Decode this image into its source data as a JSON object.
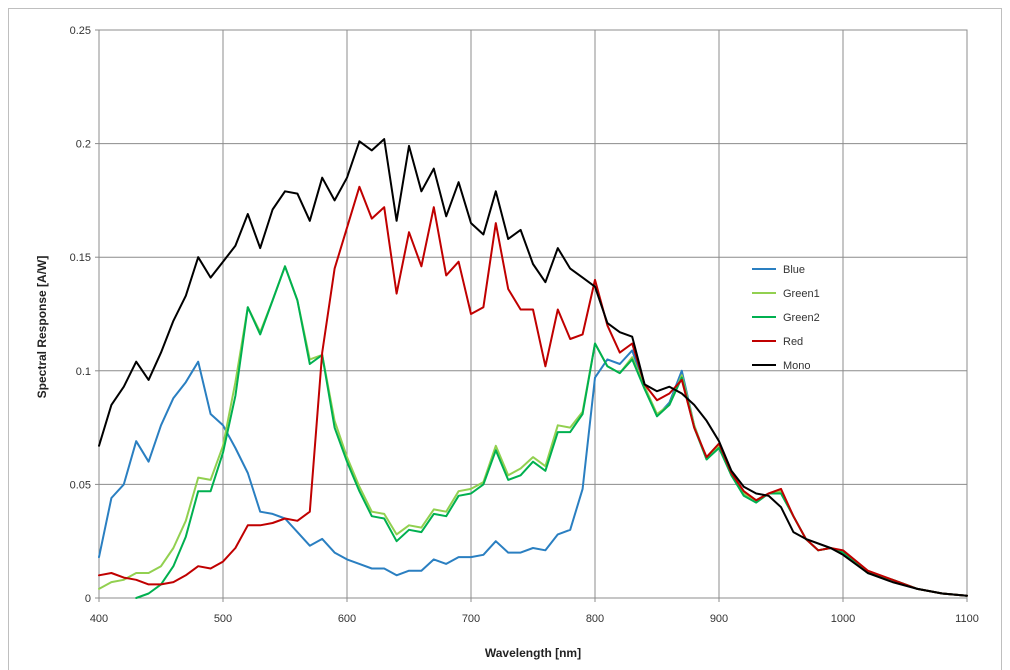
{
  "chart_data": {
    "type": "line",
    "title": "",
    "xlabel": "Wavelength [nm]",
    "ylabel": "Spectral Response [A/W]",
    "xlim": [
      400,
      1100
    ],
    "ylim": [
      0,
      0.25
    ],
    "xticks": [
      400,
      500,
      600,
      700,
      800,
      900,
      1000,
      1100
    ],
    "yticks": [
      0,
      0.05,
      0.1,
      0.15,
      0.2,
      0.25
    ],
    "xtick_labels": [
      "400",
      "500",
      "600",
      "700",
      "800",
      "900",
      "1000",
      "1100"
    ],
    "ytick_labels": [
      "0",
      "0.05",
      "0.1",
      "0.15",
      "0.2",
      "0.25"
    ],
    "grid": true,
    "legend_position": "right",
    "series": [
      {
        "name": "Blue",
        "color": "#2a7fc1",
        "x": [
          400,
          410,
          420,
          430,
          440,
          450,
          460,
          470,
          480,
          490,
          500,
          510,
          520,
          530,
          540,
          550,
          560,
          570,
          580,
          590,
          600,
          610,
          620,
          630,
          640,
          650,
          660,
          670,
          680,
          690,
          700,
          710,
          720,
          730,
          740,
          750,
          760,
          770,
          780,
          790,
          800,
          810,
          820,
          830,
          840,
          850,
          860,
          870,
          880,
          890,
          900,
          910,
          920,
          930,
          940,
          950,
          960,
          970,
          980,
          990,
          1000,
          1020,
          1040,
          1060,
          1080,
          1100
        ],
        "y": [
          0.018,
          0.044,
          0.05,
          0.069,
          0.06,
          0.076,
          0.088,
          0.095,
          0.104,
          0.081,
          0.076,
          0.066,
          0.055,
          0.038,
          0.037,
          0.035,
          0.029,
          0.023,
          0.026,
          0.02,
          0.017,
          0.015,
          0.013,
          0.013,
          0.01,
          0.012,
          0.012,
          0.017,
          0.015,
          0.018,
          0.018,
          0.019,
          0.025,
          0.02,
          0.02,
          0.022,
          0.021,
          0.028,
          0.03,
          0.048,
          0.097,
          0.105,
          0.103,
          0.109,
          0.093,
          0.08,
          0.086,
          0.1,
          0.076,
          0.061,
          0.067,
          0.054,
          0.046,
          0.043,
          0.046,
          0.047,
          0.036,
          0.026,
          0.021,
          0.022,
          0.02,
          0.011,
          0.008,
          0.004,
          0.002,
          0.001
        ]
      },
      {
        "name": "Green1",
        "color": "#92d050",
        "x": [
          400,
          410,
          420,
          430,
          440,
          450,
          460,
          470,
          480,
          490,
          500,
          510,
          520,
          530,
          540,
          550,
          560,
          570,
          580,
          590,
          600,
          610,
          620,
          630,
          640,
          650,
          660,
          670,
          680,
          690,
          700,
          710,
          720,
          730,
          740,
          750,
          760,
          770,
          780,
          790,
          800,
          810,
          820,
          830,
          840,
          850,
          860,
          870,
          880,
          890,
          900,
          910,
          920,
          930,
          940,
          950,
          960,
          970,
          980,
          990,
          1000,
          1020,
          1040,
          1060,
          1080,
          1100
        ],
        "y": [
          0.004,
          0.007,
          0.008,
          0.011,
          0.011,
          0.014,
          0.022,
          0.034,
          0.053,
          0.052,
          0.067,
          0.095,
          0.128,
          0.117,
          0.131,
          0.146,
          0.131,
          0.105,
          0.107,
          0.078,
          0.062,
          0.049,
          0.038,
          0.037,
          0.028,
          0.032,
          0.031,
          0.039,
          0.038,
          0.047,
          0.048,
          0.051,
          0.067,
          0.054,
          0.057,
          0.062,
          0.058,
          0.076,
          0.075,
          0.082,
          0.112,
          0.102,
          0.099,
          0.106,
          0.093,
          0.081,
          0.085,
          0.098,
          0.076,
          0.061,
          0.067,
          0.054,
          0.046,
          0.043,
          0.046,
          0.047,
          0.036,
          0.026,
          0.021,
          0.022,
          0.02,
          0.011,
          0.008,
          0.004,
          0.002,
          0.001
        ]
      },
      {
        "name": "Green2",
        "color": "#00b050",
        "x": [
          430,
          440,
          450,
          460,
          470,
          480,
          490,
          500,
          510,
          520,
          530,
          540,
          550,
          560,
          570,
          580,
          590,
          600,
          610,
          620,
          630,
          640,
          650,
          660,
          670,
          680,
          690,
          700,
          710,
          720,
          730,
          740,
          750,
          760,
          770,
          780,
          790,
          800,
          810,
          820,
          830,
          840,
          850,
          860,
          870,
          880,
          890,
          900,
          910,
          920,
          930,
          940,
          950,
          960,
          970,
          980,
          990,
          1000,
          1020,
          1040,
          1060,
          1080,
          1100
        ],
        "y": [
          0.0,
          0.002,
          0.006,
          0.014,
          0.027,
          0.047,
          0.047,
          0.064,
          0.089,
          0.128,
          0.116,
          0.131,
          0.146,
          0.131,
          0.103,
          0.107,
          0.075,
          0.06,
          0.047,
          0.036,
          0.035,
          0.025,
          0.03,
          0.029,
          0.037,
          0.036,
          0.045,
          0.046,
          0.05,
          0.065,
          0.052,
          0.054,
          0.06,
          0.056,
          0.073,
          0.073,
          0.081,
          0.112,
          0.102,
          0.099,
          0.105,
          0.092,
          0.08,
          0.085,
          0.097,
          0.075,
          0.061,
          0.066,
          0.054,
          0.045,
          0.042,
          0.046,
          0.046,
          0.036,
          0.026,
          0.021,
          0.022,
          0.02,
          0.011,
          0.008,
          0.004,
          0.002,
          0.001
        ]
      },
      {
        "name": "Red",
        "color": "#c00000",
        "x": [
          400,
          410,
          420,
          430,
          440,
          450,
          460,
          470,
          480,
          490,
          500,
          510,
          520,
          530,
          540,
          550,
          560,
          570,
          580,
          590,
          600,
          610,
          620,
          630,
          640,
          650,
          660,
          670,
          680,
          690,
          700,
          710,
          720,
          730,
          740,
          750,
          760,
          770,
          780,
          790,
          800,
          810,
          820,
          830,
          840,
          850,
          860,
          870,
          880,
          890,
          900,
          910,
          920,
          930,
          940,
          950,
          960,
          970,
          980,
          990,
          1000,
          1020,
          1040,
          1060,
          1080,
          1100
        ],
        "y": [
          0.01,
          0.011,
          0.009,
          0.008,
          0.006,
          0.006,
          0.007,
          0.01,
          0.014,
          0.013,
          0.016,
          0.022,
          0.032,
          0.032,
          0.033,
          0.035,
          0.034,
          0.038,
          0.108,
          0.145,
          0.163,
          0.181,
          0.167,
          0.172,
          0.134,
          0.161,
          0.146,
          0.172,
          0.142,
          0.148,
          0.125,
          0.128,
          0.165,
          0.136,
          0.127,
          0.127,
          0.102,
          0.127,
          0.114,
          0.116,
          0.14,
          0.12,
          0.108,
          0.112,
          0.094,
          0.087,
          0.09,
          0.096,
          0.075,
          0.062,
          0.068,
          0.055,
          0.047,
          0.043,
          0.046,
          0.048,
          0.036,
          0.026,
          0.021,
          0.022,
          0.021,
          0.012,
          0.008,
          0.004,
          0.002,
          0.001
        ]
      },
      {
        "name": "Mono",
        "color": "#000000",
        "x": [
          400,
          410,
          420,
          430,
          440,
          450,
          460,
          470,
          480,
          490,
          500,
          510,
          520,
          530,
          540,
          550,
          560,
          570,
          580,
          590,
          600,
          610,
          620,
          630,
          640,
          650,
          660,
          670,
          680,
          690,
          700,
          710,
          720,
          730,
          740,
          750,
          760,
          770,
          780,
          790,
          800,
          810,
          820,
          830,
          840,
          850,
          860,
          870,
          880,
          890,
          900,
          910,
          920,
          930,
          940,
          950,
          960,
          970,
          980,
          990,
          1000,
          1020,
          1040,
          1060,
          1080,
          1100
        ],
        "y": [
          0.067,
          0.085,
          0.093,
          0.104,
          0.096,
          0.108,
          0.122,
          0.133,
          0.15,
          0.141,
          0.148,
          0.155,
          0.169,
          0.154,
          0.171,
          0.179,
          0.178,
          0.166,
          0.185,
          0.175,
          0.185,
          0.201,
          0.197,
          0.202,
          0.166,
          0.199,
          0.179,
          0.189,
          0.168,
          0.183,
          0.165,
          0.16,
          0.179,
          0.158,
          0.162,
          0.147,
          0.139,
          0.154,
          0.145,
          0.141,
          0.137,
          0.121,
          0.117,
          0.115,
          0.094,
          0.091,
          0.093,
          0.09,
          0.085,
          0.078,
          0.069,
          0.056,
          0.049,
          0.046,
          0.045,
          0.04,
          0.029,
          0.026,
          0.024,
          0.022,
          0.019,
          0.011,
          0.007,
          0.004,
          0.002,
          0.001
        ]
      }
    ]
  }
}
